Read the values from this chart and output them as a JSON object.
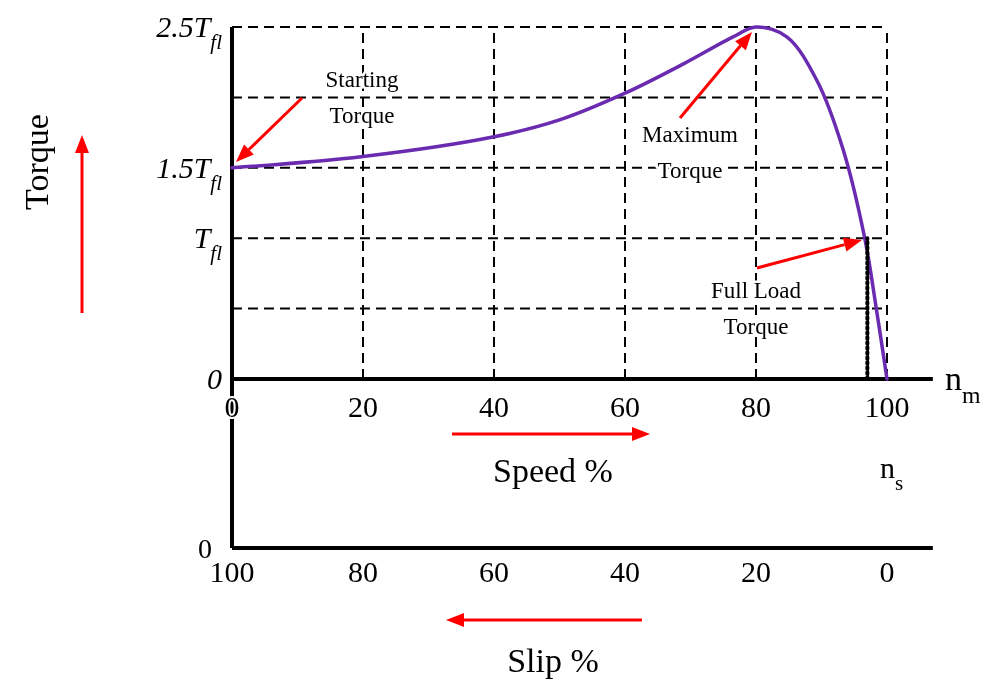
{
  "chart_data": {
    "type": "line",
    "xlabel": "Speed %",
    "x2label": "Slip %",
    "ylabel": "Torque",
    "xlim": [
      0,
      107
    ],
    "xticks": [
      0,
      20,
      40,
      60,
      80,
      100
    ],
    "x2lim": [
      100,
      -7
    ],
    "x2ticks": [
      100,
      80,
      60,
      40,
      20,
      0
    ],
    "ylim": [
      0,
      2.5
    ],
    "yticks": [
      0,
      {
        "value": 0.5,
        "label": null
      },
      {
        "value": 1,
        "label": "T$_{fl}$"
      },
      {
        "value": 1.5,
        "label": "1.5T$_{fl}$"
      },
      {
        "value": 2,
        "label": null
      },
      {
        "value": 2.5,
        "label": "2.5T$_{fl}$"
      }
    ],
    "grid": true,
    "series": [
      {
        "color": "#6a2bb0",
        "x": [
          0,
          20,
          40,
          50,
          60,
          69,
          76.5,
          80,
          84.7,
          89.3,
          93.3,
          96.6,
          98.4,
          100
        ],
        "values": [
          1.5,
          1.58,
          1.72,
          1.84,
          2.03,
          2.24,
          2.43,
          2.5,
          2.43,
          2.12,
          1.63,
          1,
          0.49,
          0
        ]
      },
      {
        "type": "line",
        "line_style": "dotted",
        "color": "#000000",
        "x": [
          97,
          97
        ],
        "values": [
          0,
          1
        ]
      }
    ],
    "annotations": [
      "Starting Torque",
      "Maximum Torque",
      "Full Load Torque",
      "n$_{m}$",
      "n$_{s}$",
      "0"
    ]
  }
}
